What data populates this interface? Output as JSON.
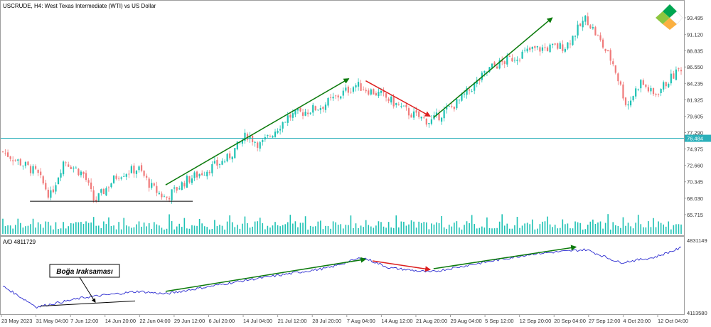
{
  "main_chart": {
    "title": "USCRUDE, H4:  West Texas Intermediate (WTI) vs US Dollar",
    "price_labels": [
      "93.495",
      "91.120",
      "88.835",
      "86.550",
      "84.235",
      "81.925",
      "79.605",
      "77.290",
      "74.975",
      "72.660",
      "70.345",
      "68.030",
      "65.715"
    ],
    "current_price_label": "76.484",
    "current_price": 76.484
  },
  "indicator": {
    "title": "A/D 4811729",
    "labels": [
      "4831149",
      "4113580"
    ],
    "annotation": "Boğa Iraksaması"
  },
  "time_axis": {
    "labels": [
      "23 May 2023",
      "31 May 04:00",
      "7 Jun 12:00",
      "14 Jun 20:00",
      "22 Jun 04:00",
      "29 Jun 12:00",
      "6 Jul 20:00",
      "14 Jul 04:00",
      "21 Jul 12:00",
      "28 Jul 20:00",
      "7 Aug 04:00",
      "14 Aug 12:00",
      "21 Aug 20:00",
      "29 Aug 04:00",
      "5 Sep 12:00",
      "12 Sep 20:00",
      "20 Sep 04:00",
      "27 Sep 12:00",
      "4 Oct 20:00",
      "12 Oct 04:00"
    ]
  },
  "colors": {
    "bull_candle": "#1ec2b4",
    "bear_candle": "#f07a7a",
    "volume": "#1ec2b4",
    "ad_line": "#2a2ad0",
    "trend_up": "#0b7a0b",
    "trend_down": "#dc1f1f",
    "support": "#000000",
    "price_line": "#2ab0ba"
  },
  "logo_name": "litefinance-logo-icon",
  "chart_data": {
    "type": "candlestick",
    "title": "USCRUDE, H4:  West Texas Intermediate (WTI) vs US Dollar",
    "x_range": [
      "23 May 2023",
      "12 Oct 2023"
    ],
    "y_range": [
      65.0,
      94.5
    ],
    "price_path_anchors": [
      {
        "t": 0.0,
        "close": 74.6
      },
      {
        "t": 0.05,
        "close": 71.6
      },
      {
        "t": 0.07,
        "close": 68.3
      },
      {
        "t": 0.09,
        "close": 73.4
      },
      {
        "t": 0.12,
        "close": 71.3
      },
      {
        "t": 0.135,
        "close": 67.5
      },
      {
        "t": 0.17,
        "close": 71.4
      },
      {
        "t": 0.2,
        "close": 72.2
      },
      {
        "t": 0.22,
        "close": 69.5
      },
      {
        "t": 0.24,
        "close": 68.0
      },
      {
        "t": 0.27,
        "close": 70.5
      },
      {
        "t": 0.33,
        "close": 73.5
      },
      {
        "t": 0.36,
        "close": 77.0
      },
      {
        "t": 0.38,
        "close": 75.5
      },
      {
        "t": 0.42,
        "close": 79.5
      },
      {
        "t": 0.47,
        "close": 81.0
      },
      {
        "t": 0.52,
        "close": 84.0
      },
      {
        "t": 0.56,
        "close": 82.5
      },
      {
        "t": 0.6,
        "close": 80.0
      },
      {
        "t": 0.63,
        "close": 78.8
      },
      {
        "t": 0.67,
        "close": 81.5
      },
      {
        "t": 0.72,
        "close": 86.5
      },
      {
        "t": 0.78,
        "close": 89.0
      },
      {
        "t": 0.83,
        "close": 89.5
      },
      {
        "t": 0.86,
        "close": 93.5
      },
      {
        "t": 0.9,
        "close": 87.0
      },
      {
        "t": 0.92,
        "close": 81.0
      },
      {
        "t": 0.94,
        "close": 84.5
      },
      {
        "t": 0.96,
        "close": 82.5
      },
      {
        "t": 1.0,
        "close": 86.5
      }
    ],
    "ad_path_anchors": [
      {
        "t": 0.0,
        "value": 4390000
      },
      {
        "t": 0.05,
        "value": 4150000
      },
      {
        "t": 0.12,
        "value": 4260000
      },
      {
        "t": 0.2,
        "value": 4330000
      },
      {
        "t": 0.24,
        "value": 4300000
      },
      {
        "t": 0.36,
        "value": 4460000
      },
      {
        "t": 0.48,
        "value": 4600000
      },
      {
        "t": 0.53,
        "value": 4720000
      },
      {
        "t": 0.57,
        "value": 4600000
      },
      {
        "t": 0.63,
        "value": 4550000
      },
      {
        "t": 0.7,
        "value": 4650000
      },
      {
        "t": 0.78,
        "value": 4760000
      },
      {
        "t": 0.86,
        "value": 4810000
      },
      {
        "t": 0.91,
        "value": 4660000
      },
      {
        "t": 0.96,
        "value": 4720000
      },
      {
        "t": 1.0,
        "value": 4830000
      }
    ],
    "annotations": {
      "support_line": {
        "from": {
          "t": 0.04,
          "price": 67.6
        },
        "to": {
          "t": 0.28,
          "price": 67.6
        }
      },
      "price_trends": [
        {
          "dir": "up",
          "from": {
            "t": 0.24,
            "price": 69.9
          },
          "to": {
            "t": 0.51,
            "price": 84.9
          }
        },
        {
          "dir": "down",
          "from": {
            "t": 0.535,
            "price": 84.6
          },
          "to": {
            "t": 0.63,
            "price": 79.6
          }
        },
        {
          "dir": "up",
          "from": {
            "t": 0.635,
            "price": 79.4
          },
          "to": {
            "t": 0.81,
            "price": 93.5
          }
        }
      ],
      "ad_trends": [
        {
          "dir": "up",
          "from": {
            "t": 0.24,
            "value": 4330000
          },
          "to": {
            "t": 0.535,
            "value": 4700000
          }
        },
        {
          "dir": "down",
          "from": {
            "t": 0.545,
            "value": 4680000
          },
          "to": {
            "t": 0.63,
            "value": 4580000
          }
        },
        {
          "dir": "up",
          "from": {
            "t": 0.635,
            "value": 4590000
          },
          "to": {
            "t": 0.845,
            "value": 4840000
          }
        }
      ],
      "divergence_line": {
        "from": {
          "t": 0.055,
          "value": 4160000
        },
        "to": {
          "t": 0.195,
          "value": 4220000
        }
      }
    }
  }
}
